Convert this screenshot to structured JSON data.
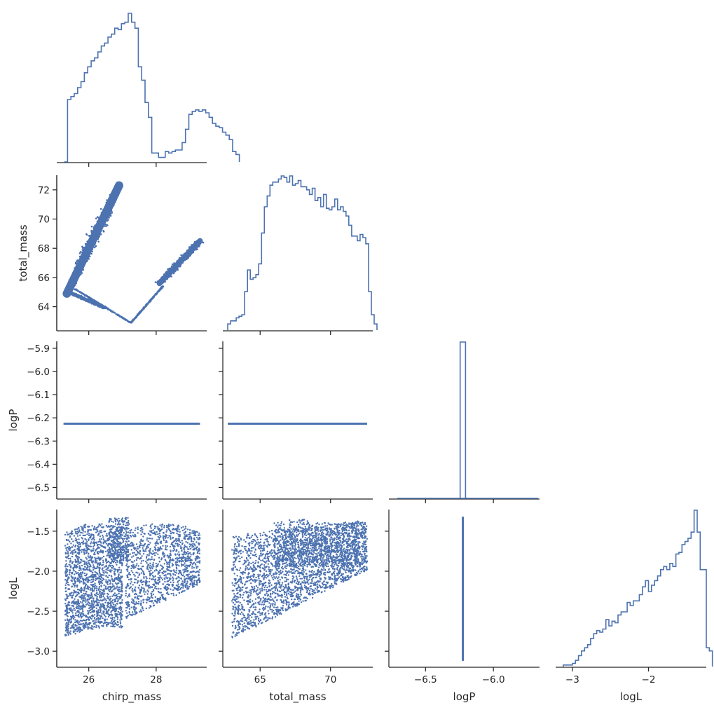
{
  "chart_data": {
    "type": "pairplot-corner",
    "variables": [
      "chirp_mass",
      "total_mass",
      "logP",
      "logL"
    ],
    "axis_labels": {
      "x": [
        "chirp_mass",
        "total_mass",
        "logP",
        "logL"
      ],
      "y": [
        "",
        "total_mass",
        "logP",
        "logL"
      ]
    },
    "ranges": {
      "chirp_mass": [
        25.05,
        29.5
      ],
      "total_mass": [
        62.35,
        73.0
      ],
      "logP": [
        -6.55,
        -5.87
      ],
      "logL": [
        -3.2,
        -1.23
      ],
      "logP_x": [
        -6.77,
        -5.66
      ],
      "logL_x": [
        -3.22,
        -1.24
      ]
    },
    "ticks": {
      "chirp_mass_x": [
        26,
        28
      ],
      "total_mass_x": [
        65,
        70
      ],
      "logP_x": [
        -6.5,
        -6.0
      ],
      "logL_x": [
        -3,
        -2
      ],
      "total_mass_y": [
        64,
        66,
        68,
        70,
        72
      ],
      "logP_y": [
        -6.5,
        -6.4,
        -6.3,
        -6.2,
        -6.1,
        -6.0,
        -5.9
      ],
      "logL_y": [
        -3.0,
        -2.5,
        -2.0,
        -1.5
      ]
    },
    "tick_labels": {
      "chirp_mass_x": [
        "26",
        "28"
      ],
      "total_mass_x": [
        "65",
        "70"
      ],
      "logP_x": [
        "−6.5",
        "−6.0"
      ],
      "logL_x": [
        "−3",
        "−2"
      ],
      "total_mass_y": [
        "64",
        "66",
        "68",
        "70",
        "72"
      ],
      "logP_y": [
        "−6.5",
        "−6.4",
        "−6.3",
        "−6.2",
        "−6.1",
        "−6.0",
        "−5.9"
      ],
      "logL_y": [
        "−3.0",
        "−2.5",
        "−2.0",
        "−1.5"
      ]
    },
    "constant_logP": -6.225,
    "histograms": {
      "chirp_mass": {
        "bin_start": 25.27,
        "bin_width": 0.1,
        "heights": [
          0,
          0.42,
          0.44,
          0.46,
          0.5,
          0.54,
          0.6,
          0.64,
          0.68,
          0.7,
          0.74,
          0.78,
          0.8,
          0.84,
          0.86,
          0.9,
          0.89,
          0.93,
          0.94,
          1.0,
          0.94,
          0.9,
          0.64,
          0.55,
          0.4,
          0.3,
          0.06,
          0.06,
          0.03,
          0.03,
          0.07,
          0.06,
          0.07,
          0.08,
          0.08,
          0.13,
          0.22,
          0.32,
          0.34,
          0.35,
          0.34,
          0.35,
          0.33,
          0.3,
          0.26,
          0.24,
          0.23,
          0.2,
          0.18,
          0.15,
          0.07,
          0.05
        ]
      },
      "total_mass": {
        "bin_start": 62.7,
        "bin_width": 0.2,
        "heights": [
          0.04,
          0.06,
          0.06,
          0.08,
          0.09,
          0.1,
          0.25,
          0.39,
          0.33,
          0.34,
          0.36,
          0.43,
          0.63,
          0.8,
          0.87,
          0.94,
          0.96,
          0.96,
          0.98,
          1.0,
          0.99,
          0.96,
          1.0,
          0.94,
          0.95,
          0.97,
          0.93,
          0.93,
          0.91,
          0.88,
          0.92,
          0.84,
          0.86,
          0.8,
          0.88,
          0.79,
          0.78,
          0.8,
          0.85,
          0.78,
          0.8,
          0.77,
          0.74,
          0.68,
          0.61,
          0.61,
          0.58,
          0.62,
          0.6,
          0.56,
          0.25,
          0.1,
          0.04
        ]
      },
      "logP": {
        "bin_start": -6.245,
        "bin_width": 0.04,
        "heights": [
          1.0
        ]
      },
      "logL": {
        "bin_start": -3.12,
        "bin_width": 0.04,
        "heights": [
          0.01,
          0.01,
          0.01,
          0.02,
          0.04,
          0.07,
          0.1,
          0.12,
          0.14,
          0.18,
          0.21,
          0.23,
          0.22,
          0.24,
          0.3,
          0.26,
          0.29,
          0.28,
          0.33,
          0.35,
          0.35,
          0.41,
          0.39,
          0.42,
          0.42,
          0.46,
          0.51,
          0.55,
          0.48,
          0.52,
          0.55,
          0.58,
          0.62,
          0.64,
          0.62,
          0.66,
          0.64,
          0.72,
          0.73,
          0.78,
          0.8,
          0.82,
          0.86,
          1.0,
          0.86,
          0.62,
          0.62,
          0.12,
          0.1
        ]
      }
    },
    "scatter_regions": {
      "chirp_vs_total": [
        {
          "from": [
            25.35,
            64.9
          ],
          "to": [
            26.9,
            72.3
          ],
          "width": 0.25
        },
        {
          "from": [
            25.4,
            65.0
          ],
          "to": [
            26.5,
            63.9
          ],
          "width": 0.12
        },
        {
          "from": [
            25.6,
            65.2
          ],
          "to": [
            27.25,
            62.9
          ],
          "width": 0.03
        },
        {
          "from": [
            27.25,
            62.9
          ],
          "to": [
            28.2,
            65.4
          ],
          "width": 0.03
        },
        {
          "from": [
            28.1,
            65.6
          ],
          "to": [
            29.3,
            68.5
          ],
          "width": 0.18
        }
      ],
      "vs_logL": {
        "logL_top": -1.32,
        "logL_bottom": -3.12
      }
    }
  }
}
